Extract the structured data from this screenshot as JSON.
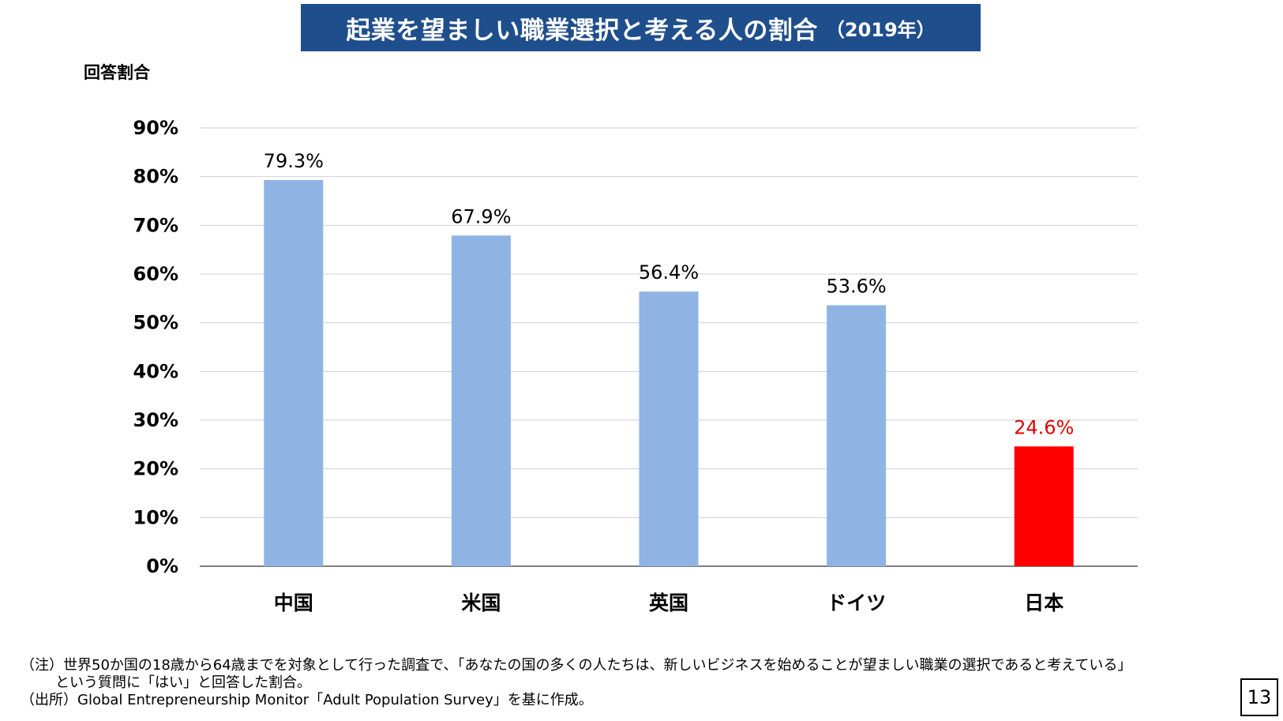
{
  "title": {
    "main": "起業を望ましい職業選択と考える人の割合",
    "year": "（2019年）"
  },
  "colors": {
    "title_background": "#1f4e8c",
    "bar_default": "#8fb4e3",
    "bar_highlight": "#ff0000",
    "label_highlight": "#e00000"
  },
  "chart_data": {
    "type": "bar",
    "title": "起業を望ましい職業選択と考える人の割合（2019年）",
    "ylabel": "回答割合",
    "xlabel": "",
    "categories": [
      "中国",
      "米国",
      "英国",
      "ドイツ",
      "日本"
    ],
    "values": [
      79.3,
      67.9,
      56.4,
      53.6,
      24.6
    ],
    "value_labels": [
      "79.3%",
      "67.9%",
      "56.4%",
      "53.6%",
      "24.6%"
    ],
    "highlight_index": 4,
    "ylim": [
      0,
      90
    ],
    "yticks": [
      0,
      10,
      20,
      30,
      40,
      50,
      60,
      70,
      80,
      90
    ],
    "ytick_labels": [
      "0%",
      "10%",
      "20%",
      "30%",
      "40%",
      "50%",
      "60%",
      "70%",
      "80%",
      "90%"
    ],
    "grid": true,
    "legend": "none"
  },
  "notes": {
    "line1": "（注）世界50か国の18歳から64歳までを対象として行った調査で、「あなたの国の多くの人たちは、新しいビジネスを始めることが望ましい職業の選択であると考えている」",
    "line2": "という質問に「はい」と回答した割合。",
    "line3": "（出所）Global Entrepreneurship Monitor「Adult Population Survey」を基に作成。"
  },
  "page_number": "13"
}
